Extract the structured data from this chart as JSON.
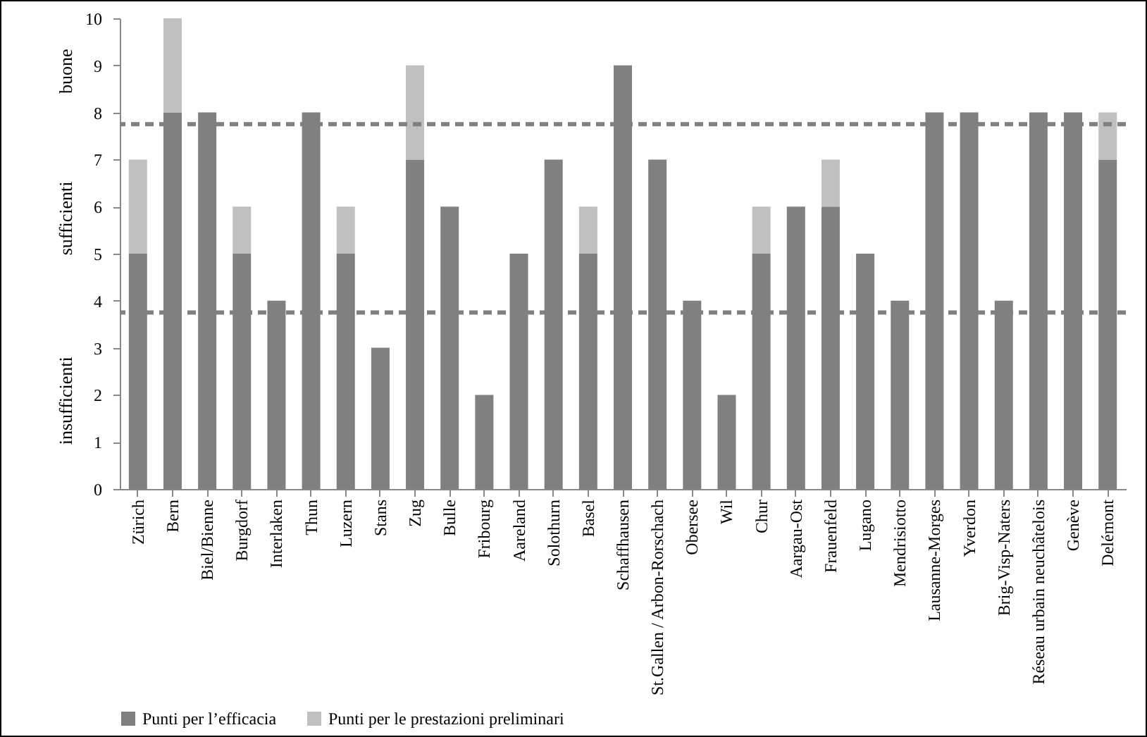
{
  "chart_data": {
    "type": "bar",
    "stacked": true,
    "categories": [
      "Zürich",
      "Bern",
      "Biel/Bienne",
      "Burgdorf",
      "Interlaken",
      "Thun",
      "Luzern",
      "Stans",
      "Zug",
      "Bulle",
      "Fribourg",
      "Aareland",
      "Solothurn",
      "Basel",
      "Schaffhausen",
      "St.Gallen / Arbon-Rorschach",
      "Obersee",
      "Wil",
      "Chur",
      "Aargau-Ost",
      "Frauenfeld",
      "Lugano",
      "Mendrisiotto",
      "Lausanne-Morges",
      "Yverdon",
      "Brig-Visp-Naters",
      "Réseau urbain neuchâtelois",
      "Genève",
      "Delémont"
    ],
    "series": [
      {
        "name": "Punti per l’efficacia",
        "color": "#808080",
        "values": [
          5,
          8,
          8,
          5,
          4,
          8,
          5,
          3,
          7,
          6,
          2,
          5,
          7,
          5,
          9,
          7,
          4,
          2,
          5,
          6,
          6,
          5,
          4,
          8,
          8,
          4,
          8,
          8,
          7
        ]
      },
      {
        "name": "Punti per le prestazioni preliminari",
        "color": "#c0c0c0",
        "values": [
          2,
          2,
          null,
          1,
          null,
          null,
          1,
          null,
          2,
          null,
          null,
          null,
          null,
          1,
          null,
          null,
          null,
          null,
          1,
          null,
          1,
          null,
          null,
          null,
          null,
          null,
          null,
          null,
          1
        ]
      }
    ],
    "ylim": [
      0,
      10
    ],
    "yticks": [
      0,
      1,
      2,
      3,
      4,
      5,
      6,
      7,
      8,
      9,
      10
    ],
    "grid": false,
    "legend": "bottom left",
    "ref_lines": [
      {
        "axis": "y",
        "value": 7.75,
        "color": "#808080",
        "line_style": "dashed"
      },
      {
        "axis": "y",
        "value": 3.75,
        "color": "#808080",
        "line_style": "dashed"
      }
    ],
    "annotations": [
      "buone",
      "sufficienti",
      "insufficienti"
    ]
  }
}
